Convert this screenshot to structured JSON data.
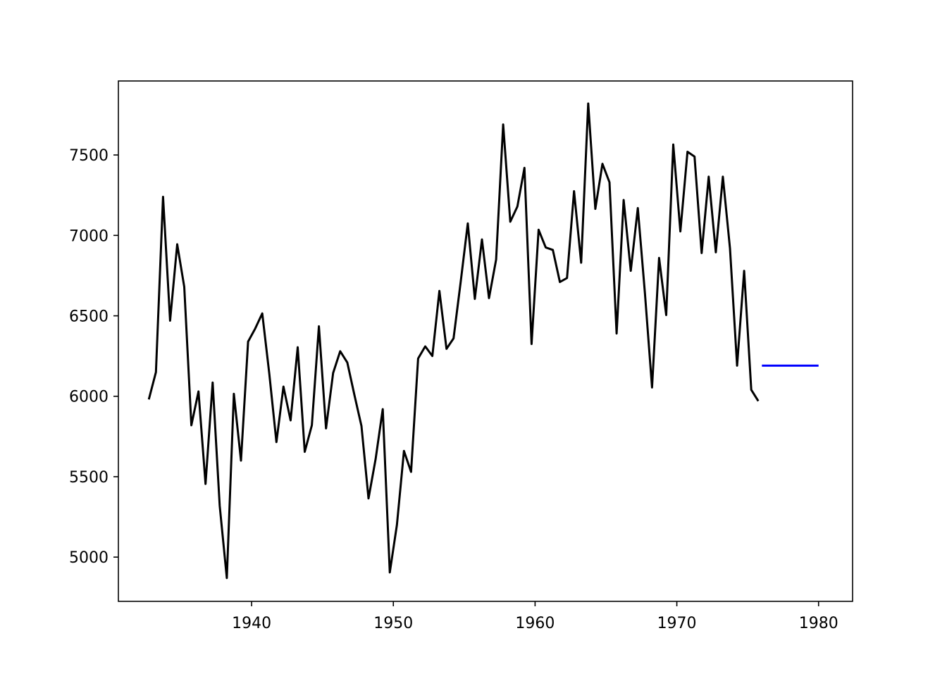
{
  "chart_data": {
    "type": "line",
    "title": "",
    "xlabel": "",
    "ylabel": "",
    "xlim": [
      1930.6,
      1982.4
    ],
    "ylim": [
      4725,
      7960
    ],
    "x_ticks": [
      1940,
      1950,
      1960,
      1970,
      1980
    ],
    "y_ticks": [
      5000,
      5500,
      6000,
      6500,
      7000,
      7500
    ],
    "grid": false,
    "legend": "none",
    "series": [
      {
        "color": "#000000",
        "x": [
          1932.75,
          1933.25,
          1933.75,
          1934.25,
          1934.75,
          1935.25,
          1935.75,
          1936.25,
          1936.75,
          1937.25,
          1937.75,
          1938.25,
          1938.75,
          1939.25,
          1939.75,
          1940.25,
          1940.75,
          1941.25,
          1941.75,
          1942.25,
          1942.75,
          1943.25,
          1943.75,
          1944.25,
          1944.75,
          1945.25,
          1945.75,
          1946.25,
          1946.75,
          1947.25,
          1947.75,
          1948.25,
          1948.75,
          1949.25,
          1949.75,
          1950.25,
          1950.75,
          1951.25,
          1951.75,
          1952.25,
          1952.75,
          1953.25,
          1953.75,
          1954.25,
          1954.75,
          1955.25,
          1955.75,
          1956.25,
          1956.75,
          1957.25,
          1957.75,
          1958.25,
          1958.75,
          1959.25,
          1959.75,
          1960.25,
          1960.75,
          1961.25,
          1961.75,
          1962.25,
          1962.75,
          1963.25,
          1963.75,
          1964.25,
          1964.75,
          1965.25,
          1965.75,
          1966.25,
          1966.75,
          1967.25,
          1967.75,
          1968.25,
          1968.75,
          1969.25,
          1969.75,
          1970.25,
          1970.75,
          1971.25,
          1971.75,
          1972.25,
          1972.75,
          1973.25,
          1973.75,
          1974.25,
          1974.75,
          1975.25,
          1975.75
        ],
        "values": [
          5980,
          6150,
          7240,
          6470,
          6945,
          6680,
          5820,
          6030,
          5455,
          6085,
          5320,
          4870,
          6015,
          5600,
          6340,
          6420,
          6515,
          6140,
          5715,
          6060,
          5850,
          6305,
          5655,
          5820,
          6435,
          5800,
          6145,
          6280,
          6210,
          6010,
          5815,
          5365,
          5610,
          5920,
          4905,
          5200,
          5660,
          5530,
          6235,
          6310,
          6250,
          6655,
          6295,
          6360,
          6710,
          7075,
          6605,
          6975,
          6610,
          6850,
          7690,
          7085,
          7180,
          7420,
          6325,
          7035,
          6925,
          6910,
          6710,
          6735,
          7275,
          6830,
          7820,
          7165,
          7445,
          7330,
          6390,
          7220,
          6780,
          7170,
          6640,
          6055,
          6860,
          6505,
          7565,
          7025,
          7520,
          7490,
          6890,
          7365,
          6895,
          7365,
          6920,
          6190,
          6780,
          6040,
          5970
        ]
      },
      {
        "color": "#0000ff",
        "x": [
          1976.0,
          1980.0
        ],
        "values": [
          6190,
          6190
        ]
      }
    ]
  }
}
